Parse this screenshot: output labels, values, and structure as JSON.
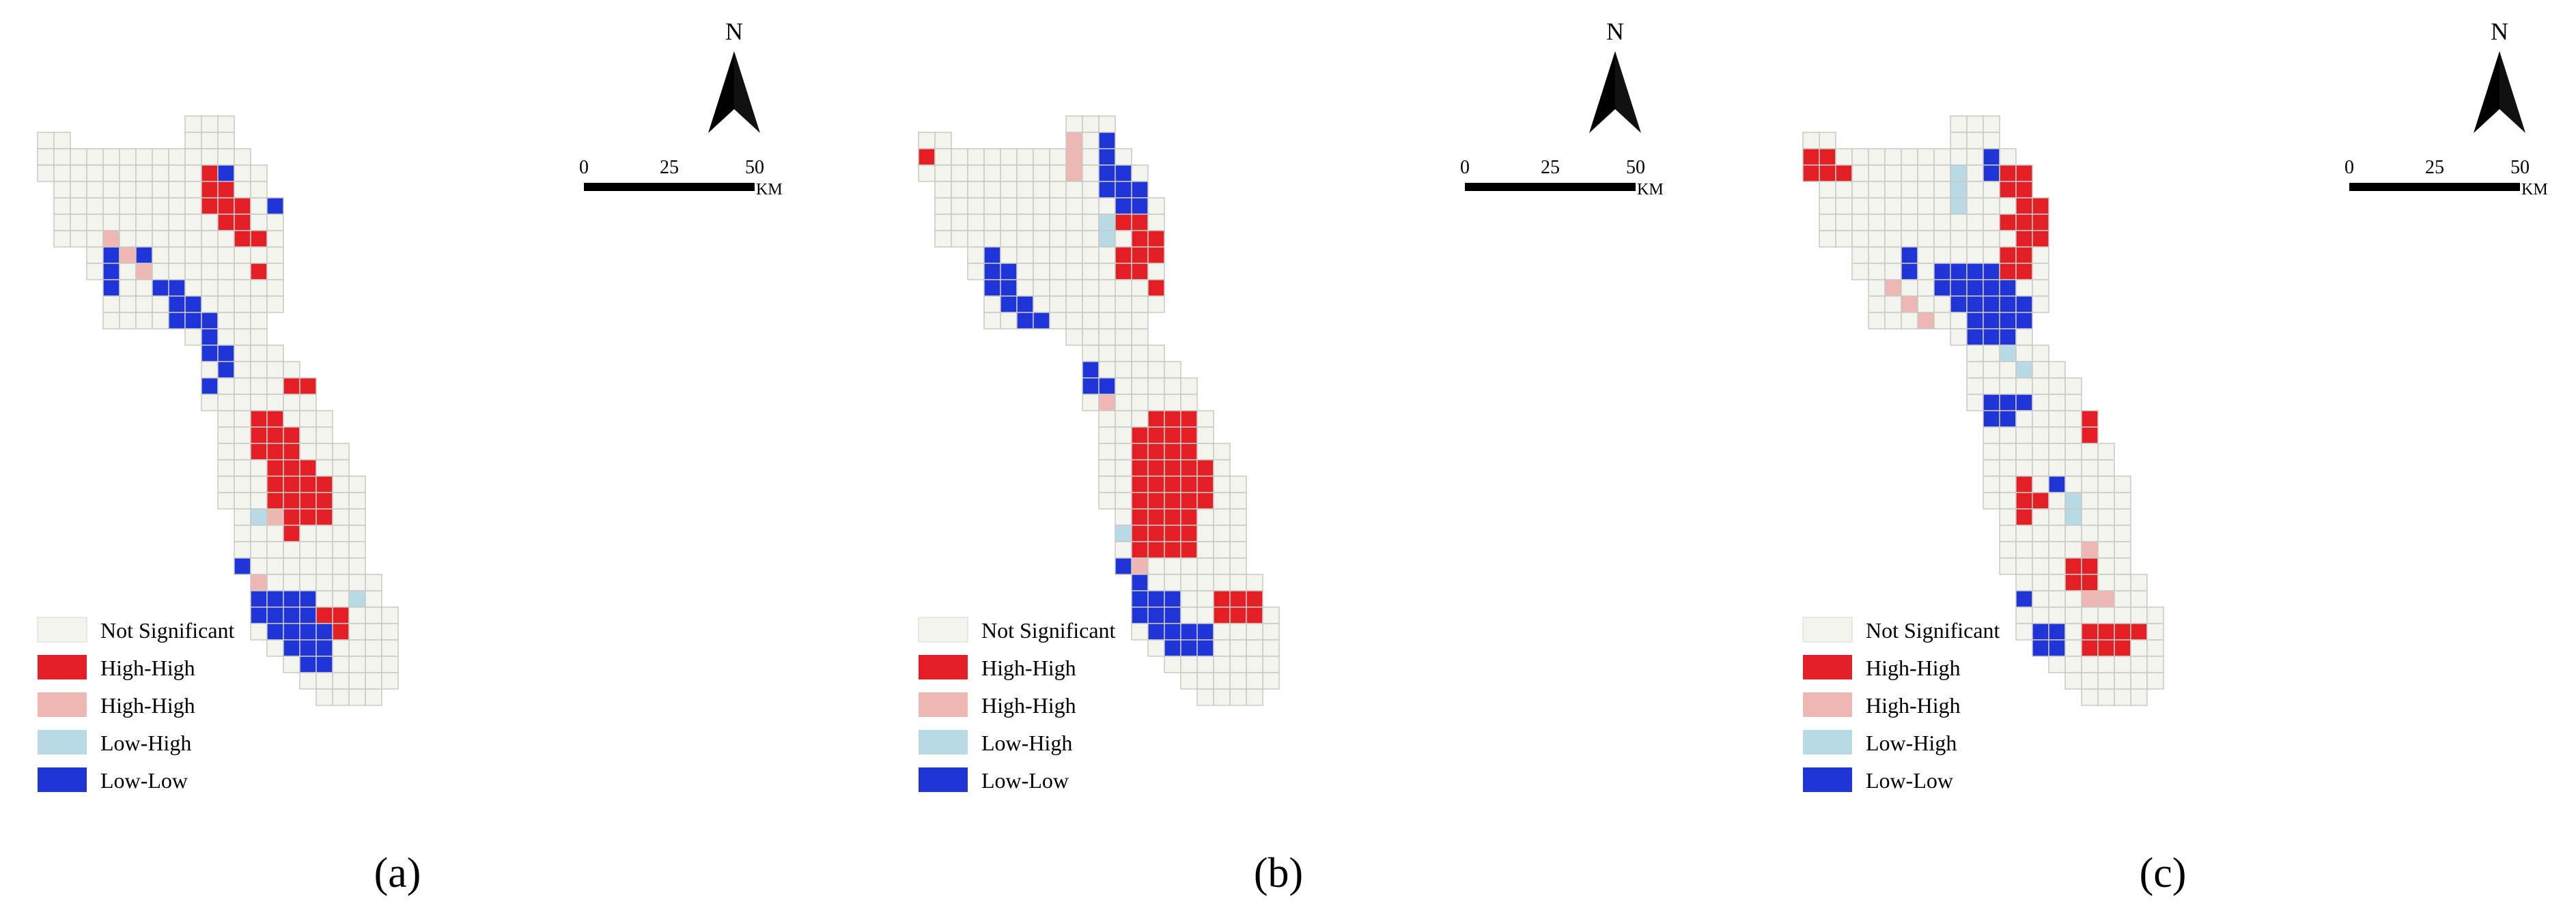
{
  "figure": {
    "panels": [
      {
        "id": "a",
        "caption": "(a)"
      },
      {
        "id": "b",
        "caption": "(b)"
      },
      {
        "id": "c",
        "caption": "(c)"
      }
    ],
    "north_label": "N",
    "scale": {
      "ticks": [
        "0",
        "25",
        "50"
      ],
      "unit": "KM"
    },
    "legend": [
      {
        "key": "ns",
        "label": "Not Significant",
        "color": "#f4f4ef"
      },
      {
        "key": "hh",
        "label": "High-High",
        "color": "#e31f25"
      },
      {
        "key": "hl",
        "label": "High-High",
        "color": "#efb7b1"
      },
      {
        "key": "lh",
        "label": "Low-High",
        "color": "#b8d9e6"
      },
      {
        "key": "ll",
        "label": "Low-Low",
        "color": "#1f35d8"
      }
    ],
    "grid_line_color": "#c9c9c4"
  }
}
